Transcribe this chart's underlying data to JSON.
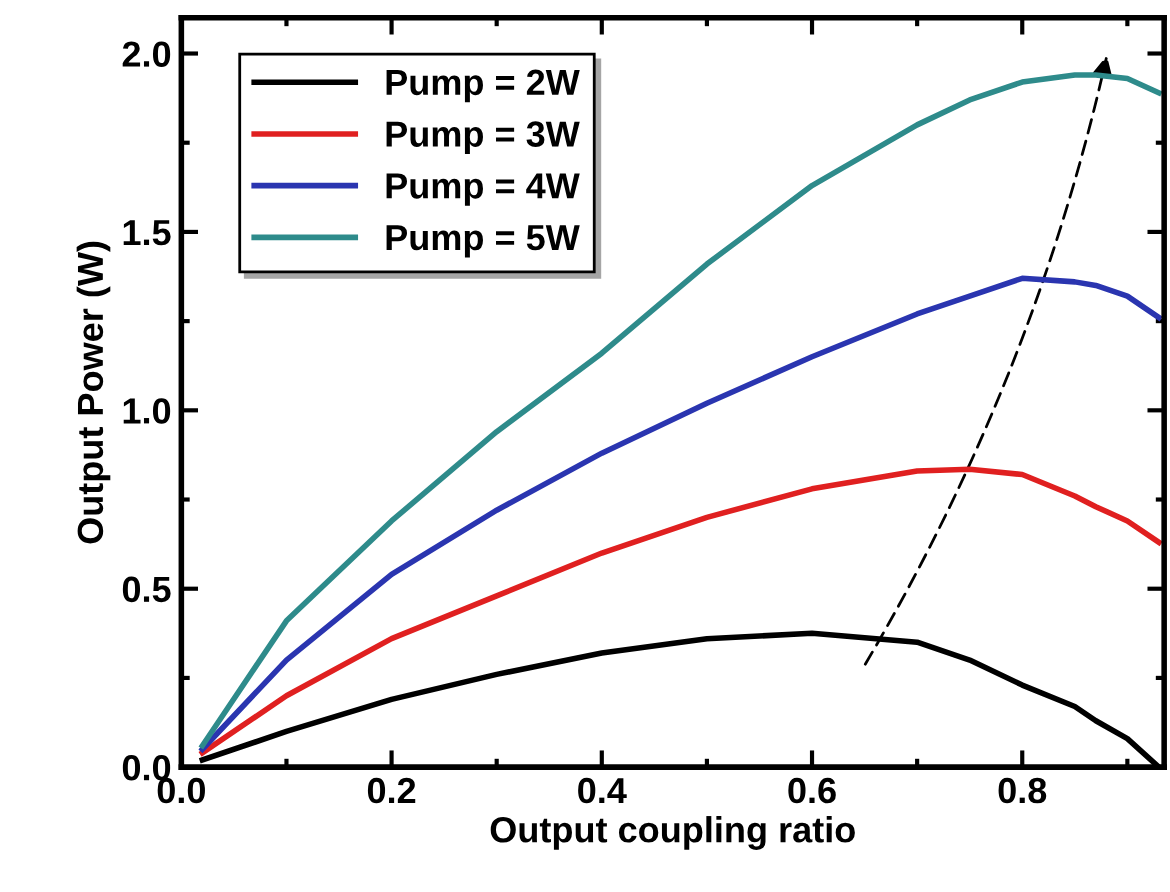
{
  "chart_data": {
    "type": "line",
    "xlabel": "Output coupling ratio",
    "ylabel": "Output Power (W)",
    "xlim": [
      0,
      0.935
    ],
    "ylim": [
      0,
      2.1
    ],
    "xticks": [
      {
        "value": 0,
        "label": "0.0"
      },
      0.2,
      0.4,
      0.6,
      0.8
    ],
    "yticks": [
      {
        "value": 0,
        "label": "0.0"
      },
      0.5,
      {
        "value": 1,
        "label": "1.0"
      },
      1.5,
      {
        "value": 2,
        "label": "2.0"
      }
    ],
    "x": [
      0.02,
      0.1,
      0.2,
      0.3,
      0.4,
      0.5,
      0.6,
      0.7,
      0.75,
      0.8,
      0.85,
      0.87,
      0.9,
      0.93
    ],
    "legend": "top left",
    "grid": false,
    "line_style": "solid",
    "series": [
      {
        "name": "Pump = 2W",
        "color": "#000000",
        "values": [
          0.02,
          0.1,
          0.19,
          0.26,
          0.32,
          0.36,
          0.375,
          0.35,
          0.3,
          0.23,
          0.17,
          0.13,
          0.08,
          0.0
        ]
      },
      {
        "name": "Pump = 3W",
        "color": "#e02020",
        "values": [
          0.04,
          0.2,
          0.36,
          0.48,
          0.6,
          0.7,
          0.78,
          0.83,
          0.835,
          0.82,
          0.76,
          0.73,
          0.69,
          0.63
        ]
      },
      {
        "name": "Pump = 4W",
        "color": "#2a35b0",
        "values": [
          0.05,
          0.3,
          0.54,
          0.72,
          0.88,
          1.02,
          1.15,
          1.27,
          1.32,
          1.37,
          1.36,
          1.35,
          1.32,
          1.26
        ]
      },
      {
        "name": "Pump = 5W",
        "color": "#2e8b8b",
        "values": [
          0.06,
          0.41,
          0.69,
          0.94,
          1.16,
          1.41,
          1.63,
          1.8,
          1.87,
          1.92,
          1.94,
          1.94,
          1.93,
          1.89
        ]
      }
    ]
  }
}
